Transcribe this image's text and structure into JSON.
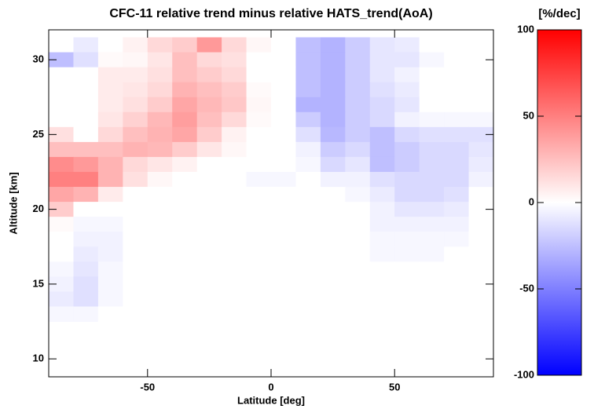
{
  "chart_data": {
    "type": "heatmap",
    "title": "CFC-11 relative trend minus relative HATS_trend(AoA)",
    "x_label": "Latitude [deg]",
    "y_label": "Altitude [km]",
    "xlim": [
      -90,
      90
    ],
    "ylim": [
      8.8,
      32
    ],
    "xticks": [
      -50,
      0,
      50
    ],
    "yticks": [
      10,
      15,
      20,
      25,
      30
    ],
    "x": [
      -85,
      -75,
      -65,
      -55,
      -45,
      -35,
      -25,
      -15,
      -5,
      5,
      15,
      25,
      35,
      45,
      55,
      65,
      75,
      85
    ],
    "y": [
      31,
      30,
      29,
      28,
      27,
      26,
      25,
      24,
      23,
      22,
      21,
      20,
      19,
      18,
      17,
      16,
      15,
      14,
      13
    ],
    "z": [
      [
        0,
        -8,
        0,
        5,
        15,
        20,
        40,
        15,
        3,
        0,
        -25,
        -30,
        -20,
        -10,
        -8,
        0,
        0,
        0
      ],
      [
        -25,
        -12,
        2,
        3,
        10,
        25,
        15,
        12,
        0,
        0,
        -25,
        -30,
        -20,
        -10,
        -10,
        -3,
        0,
        0
      ],
      [
        0,
        0,
        8,
        8,
        12,
        25,
        20,
        15,
        0,
        0,
        -25,
        -30,
        -20,
        -10,
        -5,
        0,
        0,
        0
      ],
      [
        0,
        0,
        8,
        10,
        15,
        30,
        25,
        20,
        2,
        0,
        -25,
        -30,
        -20,
        -12,
        -8,
        0,
        0,
        0
      ],
      [
        0,
        0,
        8,
        12,
        20,
        35,
        28,
        22,
        3,
        0,
        -30,
        -30,
        -20,
        -15,
        -10,
        0,
        0,
        0
      ],
      [
        0,
        0,
        10,
        18,
        28,
        38,
        25,
        15,
        2,
        0,
        -20,
        -30,
        -20,
        -15,
        -5,
        -3,
        -3,
        -3
      ],
      [
        12,
        0,
        15,
        25,
        30,
        35,
        20,
        5,
        0,
        0,
        -12,
        -28,
        -20,
        -25,
        -15,
        -12,
        -12,
        -12
      ],
      [
        25,
        25,
        25,
        30,
        28,
        20,
        10,
        3,
        0,
        0,
        -5,
        -20,
        -15,
        -25,
        -20,
        -15,
        -15,
        -10
      ],
      [
        45,
        40,
        30,
        15,
        10,
        5,
        0,
        0,
        0,
        0,
        -3,
        -15,
        -10,
        -25,
        -20,
        -15,
        -15,
        -8
      ],
      [
        50,
        50,
        30,
        12,
        3,
        0,
        0,
        0,
        -3,
        -3,
        0,
        -5,
        -5,
        -12,
        -15,
        -15,
        -15,
        -5
      ],
      [
        35,
        30,
        8,
        0,
        0,
        0,
        0,
        0,
        0,
        0,
        0,
        0,
        -3,
        -8,
        -15,
        -15,
        -12,
        0
      ],
      [
        20,
        0,
        0,
        0,
        0,
        0,
        0,
        0,
        0,
        0,
        0,
        0,
        0,
        -5,
        -10,
        -10,
        -8,
        0
      ],
      [
        2,
        -3,
        -3,
        0,
        0,
        0,
        0,
        0,
        0,
        0,
        0,
        0,
        0,
        -5,
        -5,
        -5,
        -5,
        0
      ],
      [
        0,
        -5,
        -5,
        0,
        0,
        0,
        0,
        0,
        0,
        0,
        0,
        0,
        0,
        -3,
        -3,
        -3,
        -3,
        0
      ],
      [
        0,
        -8,
        -5,
        0,
        0,
        0,
        0,
        0,
        0,
        0,
        0,
        0,
        0,
        -3,
        -3,
        -3,
        0,
        0
      ],
      [
        -3,
        -10,
        -3,
        0,
        0,
        0,
        0,
        0,
        0,
        0,
        0,
        0,
        0,
        0,
        0,
        0,
        0,
        0
      ],
      [
        -5,
        -12,
        -3,
        0,
        0,
        0,
        0,
        0,
        0,
        0,
        0,
        0,
        0,
        0,
        0,
        0,
        0,
        0
      ],
      [
        -8,
        -12,
        -3,
        0,
        0,
        0,
        0,
        0,
        0,
        0,
        0,
        0,
        0,
        0,
        0,
        0,
        0,
        0
      ],
      [
        -3,
        -3,
        0,
        0,
        0,
        0,
        0,
        0,
        0,
        0,
        0,
        0,
        0,
        0,
        0,
        0,
        0,
        0
      ]
    ],
    "colorbar": {
      "label": "[%/dec]",
      "lim": [
        -100,
        100
      ],
      "ticks": [
        -100,
        -50,
        0,
        50,
        100
      ]
    }
  }
}
